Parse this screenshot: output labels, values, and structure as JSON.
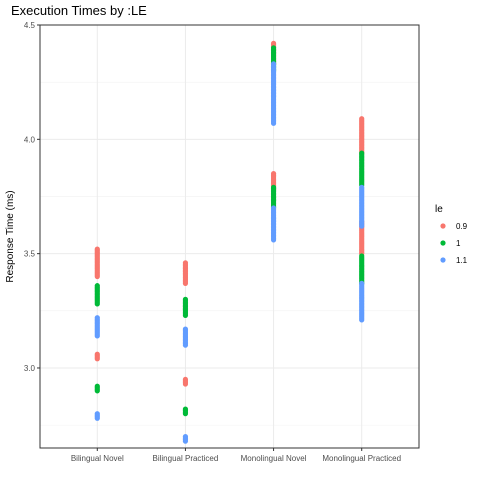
{
  "chart_data": {
    "type": "scatter",
    "title": "Execution Times by :LE",
    "xlabel": "",
    "ylabel": "Response Time (ms)",
    "ylim": [
      2.65,
      4.5
    ],
    "yticks": [
      3.0,
      3.5,
      4.0,
      4.5
    ],
    "ytick_labels": [
      "3.0",
      "3.5",
      "4.0",
      "4.5"
    ],
    "categories": [
      "Bilingual Novel",
      "Bilingual Practiced",
      "Monolingual Novel",
      "Monolingual Practiced"
    ],
    "grid": true,
    "legend": {
      "title": "le",
      "placement": "right"
    },
    "series": [
      {
        "name": "0.9",
        "color": "#f8766d",
        "ranges": [
          {
            "category": "Bilingual Novel",
            "segments": [
              [
                3.04,
                3.06
              ],
              [
                3.4,
                3.52
              ]
            ]
          },
          {
            "category": "Bilingual Practiced",
            "segments": [
              [
                2.93,
                2.95
              ],
              [
                3.37,
                3.46
              ]
            ]
          },
          {
            "category": "Monolingual Novel",
            "segments": [
              [
                3.78,
                3.85
              ],
              [
                4.33,
                4.42
              ]
            ]
          },
          {
            "category": "Monolingual Practiced",
            "segments": [
              [
                3.5,
                3.64
              ],
              [
                3.94,
                4.09
              ]
            ]
          }
        ]
      },
      {
        "name": "1",
        "color": "#00ba38",
        "ranges": [
          {
            "category": "Bilingual Novel",
            "segments": [
              [
                2.9,
                2.92
              ],
              [
                3.28,
                3.36
              ]
            ]
          },
          {
            "category": "Bilingual Practiced",
            "segments": [
              [
                2.8,
                2.82
              ],
              [
                3.23,
                3.3
              ]
            ]
          },
          {
            "category": "Monolingual Novel",
            "segments": [
              [
                3.7,
                3.79
              ],
              [
                4.3,
                4.4
              ]
            ]
          },
          {
            "category": "Monolingual Practiced",
            "segments": [
              [
                3.37,
                3.49
              ],
              [
                3.8,
                3.94
              ]
            ]
          }
        ]
      },
      {
        "name": "1.1",
        "color": "#619cff",
        "ranges": [
          {
            "category": "Bilingual Novel",
            "segments": [
              [
                2.78,
                2.8
              ],
              [
                3.14,
                3.22
              ]
            ]
          },
          {
            "category": "Bilingual Practiced",
            "segments": [
              [
                2.68,
                2.7
              ],
              [
                3.1,
                3.17
              ]
            ]
          },
          {
            "category": "Monolingual Novel",
            "segments": [
              [
                3.56,
                3.7
              ],
              [
                4.07,
                4.33
              ]
            ]
          },
          {
            "category": "Monolingual Practiced",
            "segments": [
              [
                3.21,
                3.37
              ],
              [
                3.62,
                3.79
              ]
            ]
          }
        ]
      }
    ]
  }
}
